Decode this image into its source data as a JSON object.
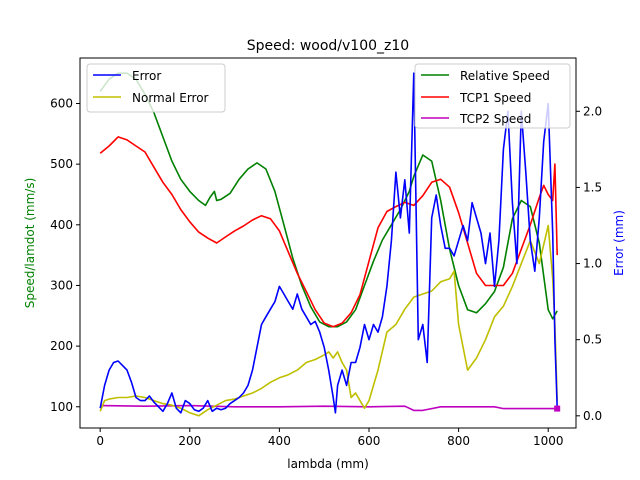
{
  "chart_data": {
    "type": "line",
    "title": "Speed: wood/v100_z10",
    "xlabel": "lambda (mm)",
    "ylabel_left": "Speed/lamdot (mm/s)",
    "ylabel_right": "Error (mm)",
    "xlim": [
      -45,
      1062
    ],
    "ylim_left": [
      65,
      675
    ],
    "ylim_right": [
      -0.08,
      2.35
    ],
    "xticks": [
      0,
      200,
      400,
      600,
      800,
      1000
    ],
    "yticks_left": [
      100,
      200,
      300,
      400,
      500,
      600
    ],
    "yticks_right": [
      0.0,
      0.5,
      1.0,
      1.5,
      2.0
    ],
    "axis_colors": {
      "left": "#008000",
      "right": "#0000ff"
    },
    "grid": false,
    "legends": [
      {
        "placement": "top-left",
        "entries": [
          "Error",
          "Normal Error"
        ]
      },
      {
        "placement": "top-right",
        "entries": [
          "Relative Speed",
          "TCP1 Speed",
          "TCP2 Speed"
        ]
      }
    ],
    "series": [
      {
        "name": "Relative Speed",
        "axis": "left",
        "color": "#008000",
        "x": [
          0,
          20,
          40,
          60,
          80,
          100,
          120,
          140,
          160,
          180,
          200,
          220,
          235,
          245,
          255,
          260,
          270,
          290,
          310,
          330,
          350,
          370,
          390,
          410,
          430,
          450,
          470,
          490,
          510,
          530,
          550,
          570,
          590,
          610,
          630,
          650,
          670,
          690,
          700,
          720,
          740,
          760,
          780,
          800,
          820,
          840,
          860,
          880,
          900,
          920,
          940,
          960,
          980,
          1000,
          1010,
          1020
        ],
        "y": [
          620,
          640,
          650,
          650,
          640,
          615,
          585,
          545,
          505,
          475,
          455,
          440,
          432,
          445,
          455,
          440,
          442,
          452,
          475,
          492,
          502,
          492,
          455,
          400,
          345,
          300,
          265,
          240,
          232,
          232,
          240,
          260,
          300,
          340,
          375,
          400,
          425,
          455,
          480,
          515,
          505,
          440,
          360,
          300,
          260,
          255,
          270,
          290,
          330,
          410,
          440,
          430,
          370,
          260,
          245,
          258
        ]
      },
      {
        "name": "TCP1 Speed",
        "axis": "left",
        "color": "#ff0000",
        "x": [
          0,
          20,
          40,
          60,
          80,
          100,
          120,
          140,
          160,
          180,
          200,
          220,
          240,
          260,
          280,
          300,
          320,
          340,
          360,
          380,
          400,
          420,
          440,
          460,
          480,
          500,
          520,
          540,
          560,
          580,
          600,
          620,
          640,
          660,
          680,
          700,
          720,
          740,
          760,
          780,
          800,
          820,
          840,
          860,
          880,
          900,
          920,
          940,
          960,
          980,
          990,
          1000,
          1010,
          1015,
          1020
        ],
        "y": [
          518,
          530,
          545,
          540,
          530,
          520,
          495,
          470,
          450,
          425,
          405,
          388,
          378,
          370,
          380,
          390,
          398,
          408,
          415,
          410,
          390,
          355,
          320,
          290,
          260,
          238,
          232,
          238,
          255,
          285,
          340,
          395,
          422,
          430,
          437,
          432,
          448,
          470,
          475,
          462,
          420,
          370,
          320,
          300,
          300,
          300,
          320,
          360,
          400,
          445,
          465,
          450,
          440,
          500,
          350
        ]
      },
      {
        "name": "TCP2 Speed",
        "axis": "left",
        "color": "#bf00bf",
        "x": [
          0,
          100,
          200,
          300,
          400,
          500,
          600,
          680,
          700,
          720,
          760,
          800,
          850,
          880,
          900,
          950,
          1000,
          1010,
          1020
        ],
        "y": [
          102,
          101,
          102,
          100,
          100,
          101,
          100,
          101,
          94,
          94,
          100,
          100,
          100,
          100,
          97,
          97,
          97,
          97,
          97
        ]
      },
      {
        "name": "Error",
        "axis": "right",
        "color": "#0000ff",
        "x": [
          0,
          10,
          20,
          30,
          40,
          50,
          60,
          70,
          80,
          90,
          100,
          110,
          120,
          130,
          140,
          150,
          160,
          170,
          180,
          190,
          200,
          210,
          220,
          230,
          240,
          250,
          260,
          270,
          280,
          290,
          300,
          310,
          320,
          330,
          340,
          350,
          360,
          370,
          380,
          390,
          400,
          410,
          420,
          430,
          440,
          450,
          460,
          470,
          480,
          490,
          500,
          510,
          520,
          525,
          530,
          540,
          550,
          560,
          570,
          580,
          590,
          600,
          610,
          620,
          630,
          640,
          650,
          660,
          670,
          680,
          690,
          700,
          710,
          720,
          730,
          740,
          750,
          760,
          770,
          780,
          790,
          800,
          810,
          820,
          830,
          840,
          850,
          860,
          870,
          880,
          890,
          900,
          910,
          920,
          930,
          940,
          950,
          960,
          970,
          980,
          990,
          1000,
          1010,
          1015,
          1020
        ],
        "y": [
          0.05,
          0.2,
          0.3,
          0.35,
          0.36,
          0.33,
          0.3,
          0.22,
          0.12,
          0.1,
          0.1,
          0.13,
          0.09,
          0.06,
          0.03,
          0.08,
          0.15,
          0.05,
          0.02,
          0.1,
          0.08,
          0.04,
          0.03,
          0.05,
          0.1,
          0.03,
          0.05,
          0.04,
          0.05,
          0.08,
          0.1,
          0.12,
          0.15,
          0.2,
          0.3,
          0.45,
          0.6,
          0.65,
          0.7,
          0.75,
          0.85,
          0.8,
          0.75,
          0.7,
          0.8,
          0.7,
          0.65,
          0.6,
          0.62,
          0.55,
          0.45,
          0.3,
          0.12,
          0.02,
          0.2,
          0.3,
          0.2,
          0.35,
          0.35,
          0.45,
          0.6,
          0.5,
          0.6,
          0.55,
          0.65,
          0.85,
          1.15,
          1.6,
          1.3,
          1.55,
          1.2,
          2.25,
          0.5,
          0.6,
          0.35,
          1.3,
          1.45,
          1.25,
          1.1,
          1.1,
          1.05,
          1.15,
          1.25,
          1.15,
          1.4,
          1.3,
          1.2,
          1.0,
          1.2,
          0.85,
          1.15,
          1.75,
          2.0,
          1.4,
          1.0,
          2.0,
          1.6,
          1.15,
          0.95,
          1.3,
          1.8,
          2.05,
          1.2,
          0.5,
          0.05
        ]
      },
      {
        "name": "Normal Error",
        "axis": "right",
        "color": "#bfbf00",
        "x": [
          0,
          10,
          20,
          40,
          60,
          80,
          100,
          120,
          140,
          160,
          180,
          200,
          220,
          240,
          260,
          280,
          300,
          320,
          340,
          360,
          380,
          400,
          420,
          440,
          460,
          480,
          500,
          510,
          520,
          530,
          540,
          550,
          560,
          570,
          580,
          590,
          600,
          620,
          640,
          660,
          680,
          700,
          720,
          740,
          760,
          780,
          790,
          800,
          820,
          840,
          860,
          880,
          900,
          920,
          940,
          960,
          980,
          1000,
          1010,
          1015,
          1020
        ],
        "y": [
          0.03,
          0.1,
          0.11,
          0.12,
          0.12,
          0.13,
          0.12,
          0.1,
          0.08,
          0.07,
          0.05,
          0.02,
          0.0,
          0.04,
          0.07,
          0.1,
          0.11,
          0.13,
          0.15,
          0.18,
          0.22,
          0.25,
          0.27,
          0.3,
          0.35,
          0.37,
          0.4,
          0.42,
          0.38,
          0.42,
          0.35,
          0.3,
          0.12,
          0.15,
          0.1,
          0.05,
          0.1,
          0.3,
          0.55,
          0.6,
          0.7,
          0.78,
          0.8,
          0.82,
          0.88,
          0.9,
          0.95,
          0.6,
          0.3,
          0.38,
          0.5,
          0.65,
          0.72,
          0.85,
          1.0,
          1.15,
          1.0,
          1.25,
          0.9,
          0.6,
          0.1
        ]
      }
    ]
  }
}
